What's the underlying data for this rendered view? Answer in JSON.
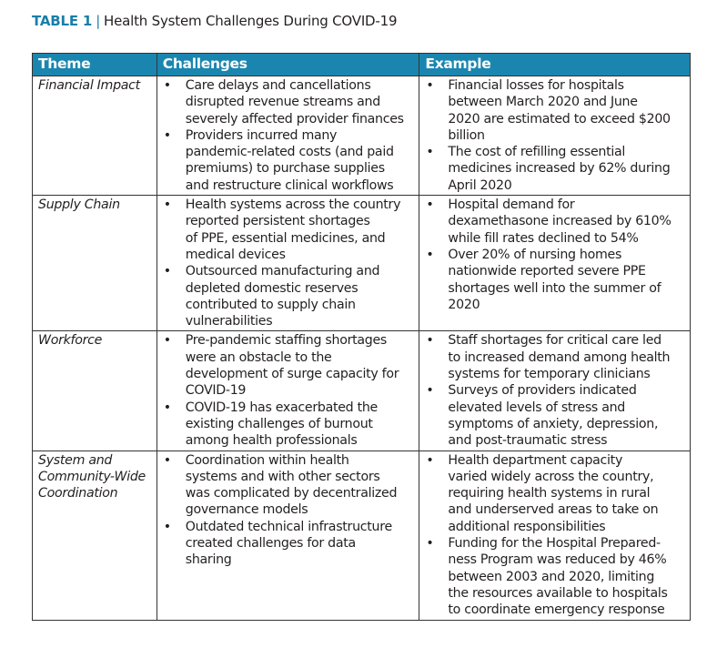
{
  "title": {
    "label": "TABLE 1",
    "separator": "|",
    "text": "Health System Challenges During COVID-19"
  },
  "headers": [
    "Theme",
    "Challenges",
    "Example"
  ],
  "rows": [
    {
      "theme": [
        "Financial Impact"
      ],
      "challenges": [
        [
          "Care delays and cancellations",
          "disrupted revenue streams and",
          "severely affected provider finances"
        ],
        [
          "Providers incurred many",
          "pandemic-related costs (and paid",
          "premiums) to purchase supplies",
          "and restructure clinical workflows"
        ]
      ],
      "examples": [
        [
          "Financial losses for hospitals",
          "between March 2020 and June",
          "2020 are estimated to exceed $200",
          "billion"
        ],
        [
          "The cost of refilling essential",
          "medicines increased by 62% during",
          "April 2020"
        ]
      ]
    },
    {
      "theme": [
        "Supply Chain"
      ],
      "challenges": [
        [
          "Health systems across the country",
          "reported persistent shortages",
          "of PPE, essential medicines, and",
          "medical devices"
        ],
        [
          "Outsourced manufacturing and",
          "depleted domestic reserves",
          "contributed to supply chain",
          "vulnerabilities"
        ]
      ],
      "examples": [
        [
          "Hospital demand for",
          "dexamethasone increased by 610%",
          "while fill rates declined to 54%"
        ],
        [
          "Over 20% of nursing homes",
          "nationwide reported severe PPE",
          "shortages well into the summer of",
          "2020"
        ]
      ]
    },
    {
      "theme": [
        "Workforce"
      ],
      "challenges": [
        [
          "Pre-pandemic staffing shortages",
          "were an obstacle to the",
          "development of surge capacity for",
          "COVID-19"
        ],
        [
          "COVID-19 has exacerbated the",
          "existing challenges of burnout",
          "among health professionals"
        ]
      ],
      "examples": [
        [
          "Staff shortages for critical care led",
          "to increased demand among health",
          "systems for temporary clinicians"
        ],
        [
          "Surveys of providers indicated",
          "elevated levels of stress and",
          "symptoms of anxiety, depression,",
          "and post-traumatic stress"
        ]
      ]
    },
    {
      "theme": [
        "System and",
        "Community-Wide",
        "Coordination"
      ],
      "challenges": [
        [
          "Coordination within health",
          "systems and with other sectors",
          "was complicated by decentralized",
          "governance models"
        ],
        [
          "Outdated technical infrastructure",
          "created challenges for data",
          "sharing"
        ]
      ],
      "examples": [
        [
          "Health department capacity",
          "varied widely across the country,",
          "requiring health systems in rural",
          "and underserved areas to take on",
          "additional responsibilities"
        ],
        [
          "Funding for the Hospital Prepared-",
          "ness Program was reduced by 46%",
          "between 2003 and 2020, limiting",
          "the resources available to hospitals",
          "to coordinate emergency response"
        ]
      ]
    }
  ],
  "bullet": "•"
}
